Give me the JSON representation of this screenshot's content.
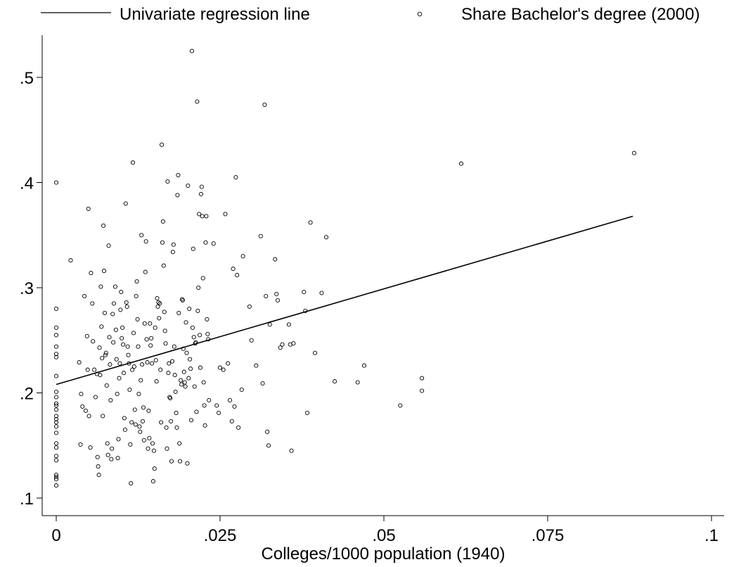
{
  "chart_data": {
    "type": "scatter",
    "xlabel": "Colleges/1000 population (1940)",
    "ylabel": "",
    "xlim": [
      -0.002,
      0.1
    ],
    "ylim": [
      0.1,
      0.54
    ],
    "x_ticks": [
      0,
      0.025,
      0.05,
      0.075,
      0.1
    ],
    "x_tick_labels": [
      "0",
      ".025",
      ".05",
      ".075",
      ".1"
    ],
    "y_ticks": [
      0.1,
      0.2,
      0.3,
      0.4,
      0.5
    ],
    "y_tick_labels": [
      ".1",
      ".2",
      ".3",
      ".4",
      ".5"
    ],
    "grid": false,
    "legend": {
      "position": "top",
      "entries": [
        "Univariate regression line",
        "Share Bachelor's degree (2000)"
      ]
    },
    "series": [
      {
        "name": "Share Bachelor's degree (2000)",
        "type": "scatter",
        "points": [
          [
            0,
            0.4
          ],
          [
            0,
            0.28
          ],
          [
            0,
            0.262
          ],
          [
            0,
            0.255
          ],
          [
            0,
            0.244
          ],
          [
            0,
            0.237
          ],
          [
            0,
            0.234
          ],
          [
            0,
            0.216
          ],
          [
            0,
            0.201
          ],
          [
            0,
            0.196
          ],
          [
            0,
            0.188
          ],
          [
            0,
            0.184
          ],
          [
            0,
            0.178
          ],
          [
            0,
            0.172
          ],
          [
            0,
            0.168
          ],
          [
            0,
            0.162
          ],
          [
            0,
            0.152
          ],
          [
            0,
            0.148
          ],
          [
            0,
            0.14
          ],
          [
            0,
            0.136
          ],
          [
            0,
            0.122
          ],
          [
            0,
            0.12
          ],
          [
            0,
            0.118
          ],
          [
            0,
            0.112
          ],
          [
            0,
            0.19
          ],
          [
            0,
            0.175
          ],
          [
            0.0022,
            0.326
          ],
          [
            0.0035,
            0.229
          ],
          [
            0.0038,
            0.199
          ],
          [
            0.0037,
            0.151
          ],
          [
            0.004,
            0.187
          ],
          [
            0.0043,
            0.292
          ],
          [
            0.0045,
            0.183
          ],
          [
            0.0047,
            0.254
          ],
          [
            0.0048,
            0.222
          ],
          [
            0.0049,
            0.375
          ],
          [
            0.005,
            0.178
          ],
          [
            0.0052,
            0.148
          ],
          [
            0.0053,
            0.314
          ],
          [
            0.0055,
            0.285
          ],
          [
            0.0056,
            0.249
          ],
          [
            0.0058,
            0.222
          ],
          [
            0.006,
            0.196
          ],
          [
            0.0062,
            0.218
          ],
          [
            0.0063,
            0.139
          ],
          [
            0.0064,
            0.13
          ],
          [
            0.0065,
            0.122
          ],
          [
            0.0066,
            0.243
          ],
          [
            0.0067,
            0.217
          ],
          [
            0.0068,
            0.301
          ],
          [
            0.0069,
            0.263
          ],
          [
            0.007,
            0.233
          ],
          [
            0.0071,
            0.178
          ],
          [
            0.0072,
            0.359
          ],
          [
            0.0073,
            0.316
          ],
          [
            0.0074,
            0.276
          ],
          [
            0.0075,
            0.236
          ],
          [
            0.0076,
            0.238
          ],
          [
            0.0077,
            0.207
          ],
          [
            0.0078,
            0.152
          ],
          [
            0.0079,
            0.141
          ],
          [
            0.008,
            0.34
          ],
          [
            0.0081,
            0.253
          ],
          [
            0.0082,
            0.227
          ],
          [
            0.0083,
            0.193
          ],
          [
            0.0084,
            0.137
          ],
          [
            0.0085,
            0.147
          ],
          [
            0.0086,
            0.275
          ],
          [
            0.0087,
            0.248
          ],
          [
            0.0088,
            0.285
          ],
          [
            0.009,
            0.301
          ],
          [
            0.0091,
            0.26
          ],
          [
            0.0092,
            0.232
          ],
          [
            0.0093,
            0.199
          ],
          [
            0.0094,
            0.138
          ],
          [
            0.0095,
            0.156
          ],
          [
            0.0096,
            0.214
          ],
          [
            0.0097,
            0.228
          ],
          [
            0.0098,
            0.279
          ],
          [
            0.0099,
            0.296
          ],
          [
            0.01,
            0.252
          ],
          [
            0.0101,
            0.262
          ],
          [
            0.0102,
            0.246
          ],
          [
            0.0103,
            0.219
          ],
          [
            0.0104,
            0.176
          ],
          [
            0.0105,
            0.165
          ],
          [
            0.0106,
            0.38
          ],
          [
            0.0107,
            0.286
          ],
          [
            0.0108,
            0.282
          ],
          [
            0.0109,
            0.244
          ],
          [
            0.011,
            0.236
          ],
          [
            0.0111,
            0.228
          ],
          [
            0.0112,
            0.203
          ],
          [
            0.0113,
            0.151
          ],
          [
            0.0114,
            0.114
          ],
          [
            0.0115,
            0.172
          ],
          [
            0.0116,
            0.222
          ],
          [
            0.0117,
            0.419
          ],
          [
            0.0118,
            0.257
          ],
          [
            0.0119,
            0.225
          ],
          [
            0.012,
            0.184
          ],
          [
            0.0121,
            0.17
          ],
          [
            0.0122,
            0.292
          ],
          [
            0.0123,
            0.306
          ],
          [
            0.0124,
            0.27
          ],
          [
            0.0125,
            0.244
          ],
          [
            0.0126,
            0.199
          ],
          [
            0.0127,
            0.168
          ],
          [
            0.0128,
            0.163
          ],
          [
            0.0129,
            0.212
          ],
          [
            0.013,
            0.35
          ],
          [
            0.0131,
            0.227
          ],
          [
            0.0132,
            0.173
          ],
          [
            0.0133,
            0.186
          ],
          [
            0.0134,
            0.155
          ],
          [
            0.0135,
            0.266
          ],
          [
            0.0136,
            0.315
          ],
          [
            0.0137,
            0.344
          ],
          [
            0.0138,
            0.251
          ],
          [
            0.0139,
            0.229
          ],
          [
            0.014,
            0.147
          ],
          [
            0.0141,
            0.183
          ],
          [
            0.0142,
            0.157
          ],
          [
            0.0143,
            0.266
          ],
          [
            0.0144,
            0.245
          ],
          [
            0.0145,
            0.252
          ],
          [
            0.0146,
            0.228
          ],
          [
            0.0147,
            0.152
          ],
          [
            0.0148,
            0.116
          ],
          [
            0.0149,
            0.145
          ],
          [
            0.015,
            0.128
          ],
          [
            0.0151,
            0.262
          ],
          [
            0.0152,
            0.231
          ],
          [
            0.0153,
            0.211
          ],
          [
            0.0154,
            0.29
          ],
          [
            0.0155,
            0.282
          ],
          [
            0.0156,
            0.286
          ],
          [
            0.0157,
            0.271
          ],
          [
            0.0158,
            0.285
          ],
          [
            0.0159,
            0.222
          ],
          [
            0.016,
            0.172
          ],
          [
            0.0161,
            0.436
          ],
          [
            0.0162,
            0.343
          ],
          [
            0.0163,
            0.363
          ],
          [
            0.0164,
            0.321
          ],
          [
            0.0165,
            0.277
          ],
          [
            0.0166,
            0.259
          ],
          [
            0.0167,
            0.247
          ],
          [
            0.0168,
            0.167
          ],
          [
            0.0169,
            0.147
          ],
          [
            0.017,
            0.401
          ],
          [
            0.0171,
            0.219
          ],
          [
            0.0172,
            0.228
          ],
          [
            0.0173,
            0.196
          ],
          [
            0.0174,
            0.195
          ],
          [
            0.0175,
            0.173
          ],
          [
            0.0176,
            0.135
          ],
          [
            0.0177,
            0.23
          ],
          [
            0.0178,
            0.334
          ],
          [
            0.0179,
            0.341
          ],
          [
            0.018,
            0.244
          ],
          [
            0.0181,
            0.217
          ],
          [
            0.0182,
            0.201
          ],
          [
            0.0183,
            0.181
          ],
          [
            0.0184,
            0.167
          ],
          [
            0.0185,
            0.388
          ],
          [
            0.0186,
            0.407
          ],
          [
            0.0187,
            0.276
          ],
          [
            0.0188,
            0.152
          ],
          [
            0.0189,
            0.135
          ],
          [
            0.019,
            0.212
          ],
          [
            0.0191,
            0.208
          ],
          [
            0.0192,
            0.289
          ],
          [
            0.0193,
            0.288
          ],
          [
            0.0194,
            0.242
          ],
          [
            0.0195,
            0.22
          ],
          [
            0.0196,
            0.21
          ],
          [
            0.0197,
            0.206
          ],
          [
            0.0198,
            0.267
          ],
          [
            0.0199,
            0.238
          ],
          [
            0.02,
            0.133
          ],
          [
            0.0201,
            0.397
          ],
          [
            0.0202,
            0.214
          ],
          [
            0.0203,
            0.28
          ],
          [
            0.0204,
            0.232
          ],
          [
            0.0205,
            0.223
          ],
          [
            0.0206,
            0.174
          ],
          [
            0.0207,
            0.525
          ],
          [
            0.0208,
            0.262
          ],
          [
            0.0209,
            0.337
          ],
          [
            0.021,
            0.253
          ],
          [
            0.0211,
            0.206
          ],
          [
            0.0212,
            0.247
          ],
          [
            0.0213,
            0.248
          ],
          [
            0.0214,
            0.182
          ],
          [
            0.0215,
            0.477
          ],
          [
            0.0216,
            0.278
          ],
          [
            0.0217,
            0.3
          ],
          [
            0.0218,
            0.37
          ],
          [
            0.0219,
            0.255
          ],
          [
            0.022,
            0.224
          ],
          [
            0.0221,
            0.389
          ],
          [
            0.0222,
            0.396
          ],
          [
            0.0223,
            0.368
          ],
          [
            0.0224,
            0.309
          ],
          [
            0.0225,
            0.21
          ],
          [
            0.0226,
            0.188
          ],
          [
            0.0227,
            0.169
          ],
          [
            0.0228,
            0.343
          ],
          [
            0.0229,
            0.368
          ],
          [
            0.023,
            0.27
          ],
          [
            0.0231,
            0.256
          ],
          [
            0.0232,
            0.251
          ],
          [
            0.0233,
            0.193
          ],
          [
            0.024,
            0.342
          ],
          [
            0.0245,
            0.188
          ],
          [
            0.0248,
            0.181
          ],
          [
            0.025,
            0.224
          ],
          [
            0.0255,
            0.222
          ],
          [
            0.0258,
            0.37
          ],
          [
            0.0262,
            0.228
          ],
          [
            0.0265,
            0.193
          ],
          [
            0.0268,
            0.173
          ],
          [
            0.027,
            0.318
          ],
          [
            0.0272,
            0.187
          ],
          [
            0.0274,
            0.405
          ],
          [
            0.0276,
            0.312
          ],
          [
            0.0278,
            0.167
          ],
          [
            0.0283,
            0.203
          ],
          [
            0.0285,
            0.33
          ],
          [
            0.0295,
            0.282
          ],
          [
            0.0298,
            0.25
          ],
          [
            0.0305,
            0.226
          ],
          [
            0.0312,
            0.349
          ],
          [
            0.0315,
            0.209
          ],
          [
            0.0318,
            0.474
          ],
          [
            0.032,
            0.292
          ],
          [
            0.0322,
            0.163
          ],
          [
            0.0324,
            0.15
          ],
          [
            0.0326,
            0.265
          ],
          [
            0.0334,
            0.327
          ],
          [
            0.0336,
            0.294
          ],
          [
            0.0338,
            0.288
          ],
          [
            0.0342,
            0.243
          ],
          [
            0.0345,
            0.246
          ],
          [
            0.0355,
            0.265
          ],
          [
            0.0357,
            0.246
          ],
          [
            0.0359,
            0.145
          ],
          [
            0.0362,
            0.247
          ],
          [
            0.0378,
            0.296
          ],
          [
            0.038,
            0.278
          ],
          [
            0.0383,
            0.181
          ],
          [
            0.0388,
            0.362
          ],
          [
            0.0395,
            0.238
          ],
          [
            0.0405,
            0.295
          ],
          [
            0.0412,
            0.348
          ],
          [
            0.0425,
            0.211
          ],
          [
            0.046,
            0.21
          ],
          [
            0.047,
            0.226
          ],
          [
            0.0525,
            0.188
          ],
          [
            0.0558,
            0.214
          ],
          [
            0.0558,
            0.202
          ],
          [
            0.0618,
            0.418
          ],
          [
            0.0882,
            0.428
          ]
        ]
      },
      {
        "name": "Univariate regression line",
        "type": "line",
        "x": [
          0,
          0.088
        ],
        "y": [
          0.208,
          0.368
        ]
      }
    ]
  }
}
